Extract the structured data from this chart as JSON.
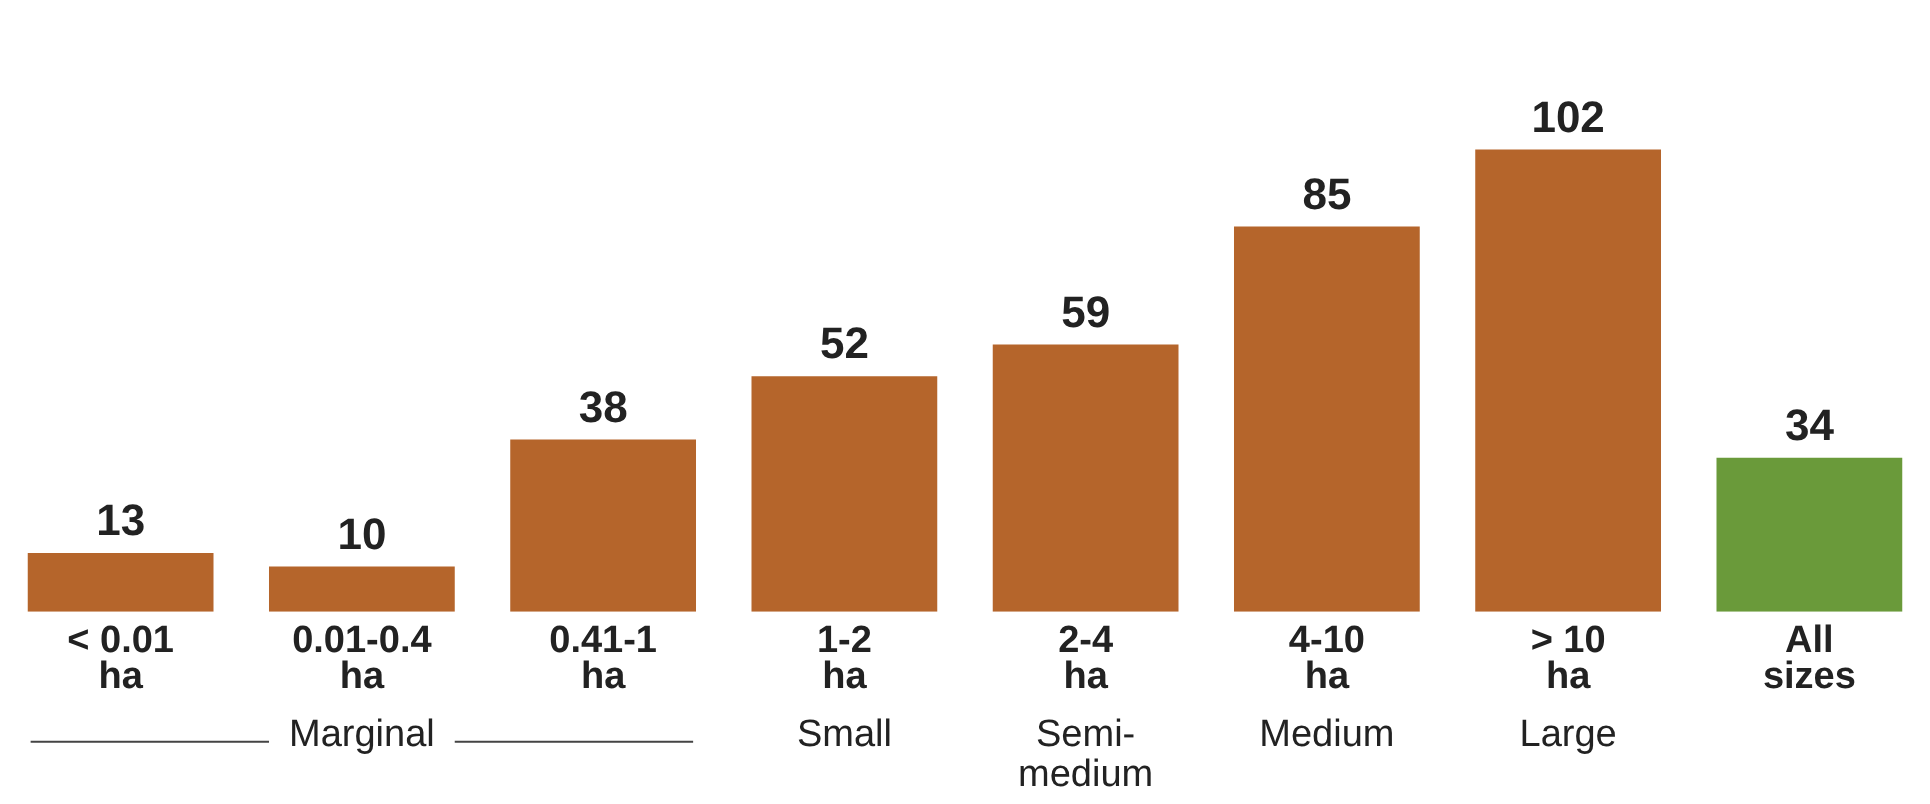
{
  "chart_data": {
    "type": "bar",
    "categories": [
      "< 0.01\nha",
      "0.01-0.4\nha",
      "0.41-1\nha",
      "1-2\nha",
      "2-4\nha",
      "4-10\nha",
      "> 10\nha",
      "All\nsizes"
    ],
    "values": [
      13,
      10,
      38,
      52,
      59,
      85,
      102,
      34
    ],
    "colors": [
      "#b5652b",
      "#b5652b",
      "#b5652b",
      "#b5652b",
      "#b5652b",
      "#b5652b",
      "#b5652b",
      "#6a9a3a"
    ],
    "data_labels": true,
    "grid": false,
    "legend": false,
    "annotations": [
      "Marginal",
      "Small",
      "Semi-\nmedium",
      "Medium",
      "Large"
    ]
  }
}
